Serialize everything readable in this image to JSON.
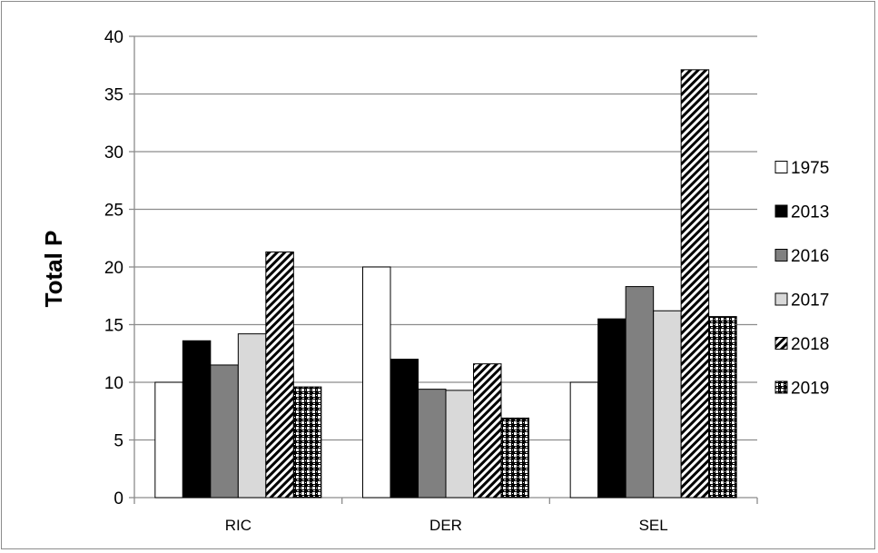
{
  "chart_data": {
    "type": "bar",
    "title": "",
    "xlabel": "",
    "ylabel": "Total P",
    "ylim": [
      0,
      40
    ],
    "yticks": [
      "0",
      "5",
      "10",
      "15",
      "20",
      "25",
      "30",
      "35",
      "40"
    ],
    "grid": true,
    "legend_position": "right",
    "categories": [
      "RIC",
      "DER",
      "SEL"
    ],
    "series": [
      {
        "name": "1975",
        "values": [
          10.0,
          20.0,
          10.0
        ],
        "fill": "white"
      },
      {
        "name": "2013",
        "values": [
          13.6,
          12.0,
          15.5
        ],
        "fill": "black"
      },
      {
        "name": "2016",
        "values": [
          11.5,
          9.4,
          18.3
        ],
        "fill": "dark-gray"
      },
      {
        "name": "2017",
        "values": [
          14.2,
          9.3,
          16.2
        ],
        "fill": "light-gray"
      },
      {
        "name": "2018",
        "values": [
          21.3,
          11.6,
          37.1
        ],
        "fill": "diagonal-hatch"
      },
      {
        "name": "2019",
        "values": [
          9.6,
          6.9,
          15.7
        ],
        "fill": "checker"
      }
    ]
  },
  "colors": {
    "white": "#ffffff",
    "black": "#000000",
    "dark-gray": "#808080",
    "light-gray": "#d9d9d9",
    "gridline": "#8c8c8c",
    "bar-outline": "#000000"
  }
}
